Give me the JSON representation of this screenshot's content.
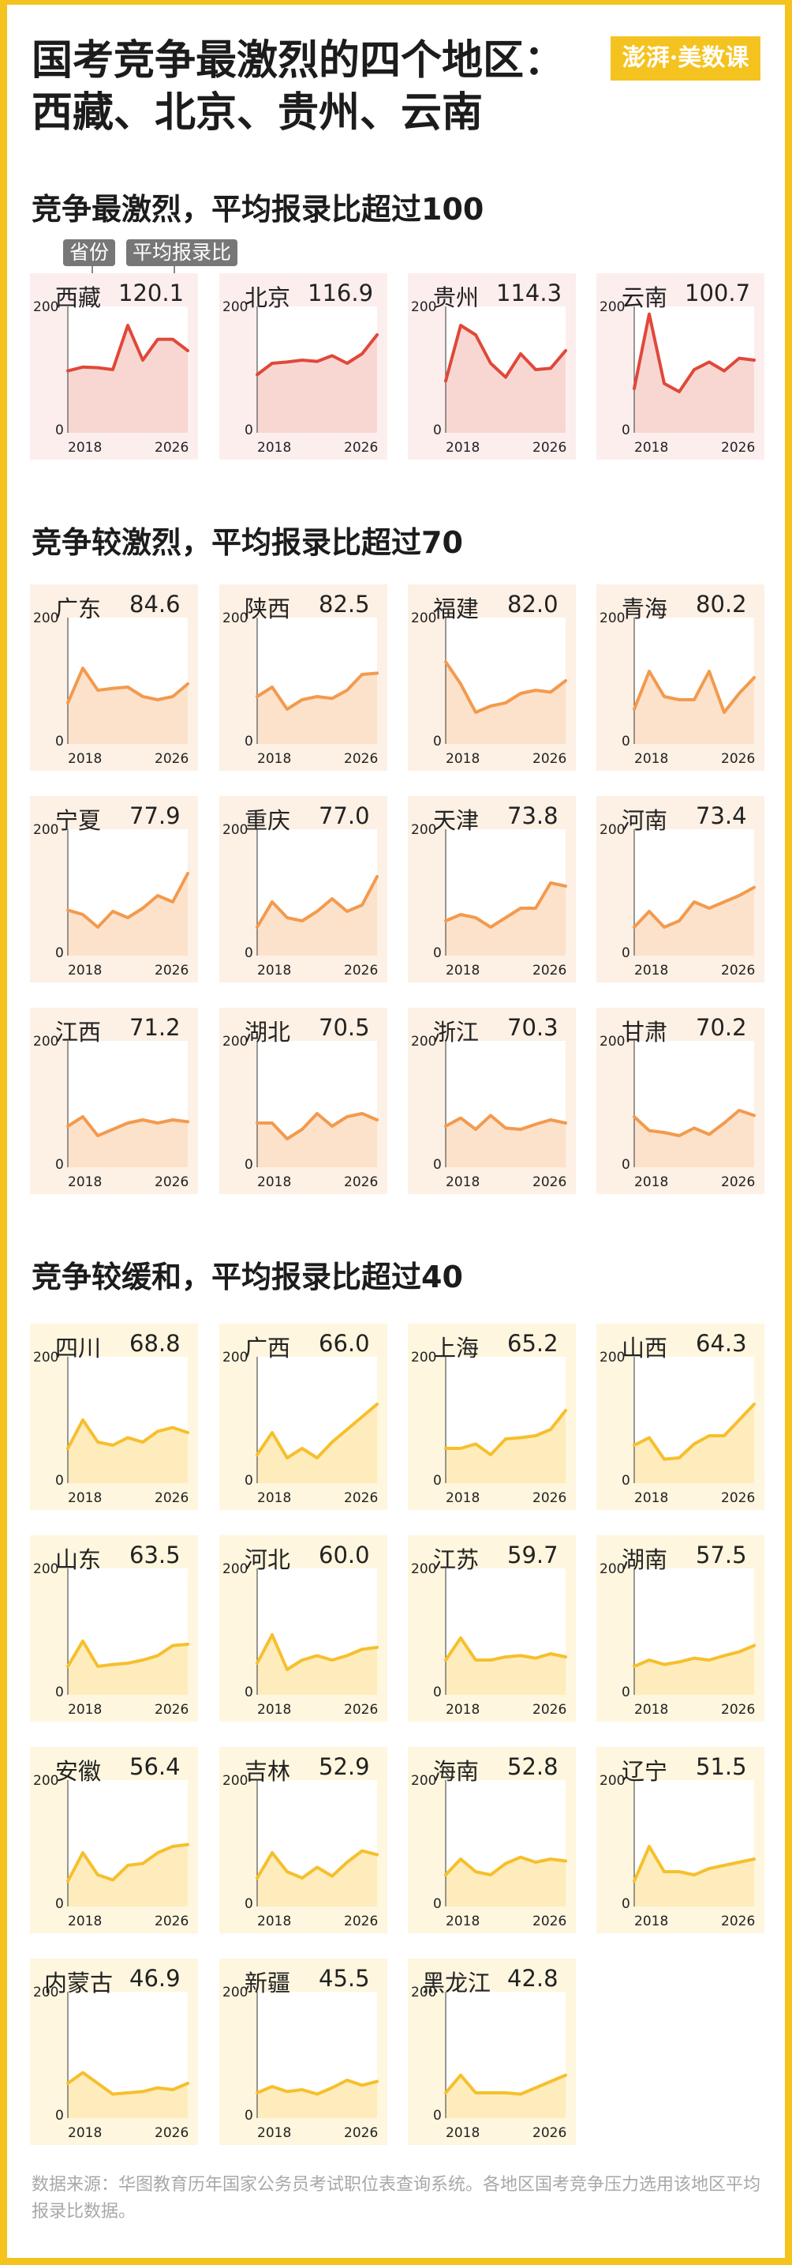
{
  "title": "国考竞争最激烈的四个地区：西藏、北京、贵州、云南",
  "logo": "澎湃·美数课",
  "legend": {
    "province": "省份",
    "ratio": "平均报录比"
  },
  "source": "数据来源：华图教育历年国家公务员考试职位表查询系统。各地区国考竞争压力选用该地区平均报录比数据。",
  "axis": {
    "y_max_label": "200",
    "y_min_label": "0",
    "x_start_label": "2018",
    "x_end_label": "2026"
  },
  "groups": [
    {
      "title": "竞争最激烈，平均报录比超过100",
      "line_color": "#e0483a",
      "fill_color": "#f6c9c3",
      "card_color": "#fdeeee"
    },
    {
      "title": "竞争较激烈，平均报录比超过70",
      "line_color": "#f39a4e",
      "fill_color": "#fbd8b9",
      "card_color": "#fdf0e4"
    },
    {
      "title": "竞争较缓和，平均报录比超过40",
      "line_color": "#f6bf2c",
      "fill_color": "#fde5a6",
      "card_color": "#fef6de"
    }
  ],
  "chart_data": {
    "type": "area",
    "x": [
      2018,
      2019,
      2020,
      2021,
      2022,
      2023,
      2024,
      2025,
      2026
    ],
    "ylim": [
      0,
      200
    ],
    "series": [
      {
        "name": "西藏",
        "label": "120.1",
        "group": 0,
        "values": [
          98,
          104,
          103,
          100,
          170,
          115,
          148,
          148,
          130
        ]
      },
      {
        "name": "北京",
        "label": "116.9",
        "group": 0,
        "values": [
          92,
          110,
          112,
          115,
          113,
          122,
          110,
          125,
          155
        ]
      },
      {
        "name": "贵州",
        "label": "114.3",
        "group": 0,
        "values": [
          82,
          170,
          155,
          110,
          88,
          125,
          100,
          102,
          130
        ]
      },
      {
        "name": "云南",
        "label": "100.7",
        "group": 0,
        "values": [
          70,
          188,
          78,
          65,
          100,
          112,
          98,
          118,
          115
        ]
      },
      {
        "name": "广东",
        "label": "84.6",
        "group": 1,
        "values": [
          65,
          120,
          85,
          88,
          90,
          75,
          70,
          75,
          95
        ]
      },
      {
        "name": "陕西",
        "label": "82.5",
        "group": 1,
        "values": [
          75,
          90,
          55,
          70,
          75,
          72,
          85,
          110,
          112
        ]
      },
      {
        "name": "福建",
        "label": "82.0",
        "group": 1,
        "values": [
          130,
          95,
          50,
          60,
          65,
          80,
          85,
          82,
          100
        ]
      },
      {
        "name": "青海",
        "label": "80.2",
        "group": 1,
        "values": [
          55,
          115,
          75,
          70,
          70,
          115,
          50,
          80,
          105
        ]
      },
      {
        "name": "宁夏",
        "label": "77.9",
        "group": 2,
        "values": [
          72,
          65,
          45,
          70,
          60,
          75,
          95,
          85,
          130
        ]
      },
      {
        "name": "重庆",
        "label": "77.0",
        "group": 2,
        "values": [
          45,
          85,
          60,
          55,
          70,
          90,
          70,
          80,
          125
        ]
      },
      {
        "name": "天津",
        "label": "73.8",
        "group": 2,
        "values": [
          55,
          65,
          60,
          45,
          60,
          75,
          75,
          115,
          110
        ]
      },
      {
        "name": "河南",
        "label": "73.4",
        "group": 2,
        "values": [
          45,
          70,
          45,
          55,
          85,
          75,
          85,
          95,
          108
        ]
      },
      {
        "name": "江西",
        "label": "71.2",
        "group": 3,
        "values": [
          65,
          80,
          50,
          60,
          70,
          75,
          70,
          75,
          72
        ]
      },
      {
        "name": "湖北",
        "label": "70.5",
        "group": 3,
        "values": [
          70,
          70,
          45,
          60,
          85,
          65,
          80,
          85,
          75
        ]
      },
      {
        "name": "浙江",
        "label": "70.3",
        "group": 3,
        "values": [
          65,
          78,
          60,
          82,
          62,
          60,
          68,
          75,
          70
        ]
      },
      {
        "name": "甘肃",
        "label": "70.2",
        "group": 3,
        "values": [
          80,
          58,
          55,
          50,
          62,
          52,
          70,
          90,
          82
        ]
      },
      {
        "name": "四川",
        "label": "68.8",
        "group": 4,
        "values": [
          55,
          100,
          65,
          60,
          72,
          65,
          82,
          88,
          80
        ]
      },
      {
        "name": "广西",
        "label": "66.0",
        "group": 4,
        "values": [
          45,
          80,
          40,
          55,
          40,
          65,
          85,
          105,
          125
        ]
      },
      {
        "name": "上海",
        "label": "65.2",
        "group": 4,
        "values": [
          55,
          55,
          62,
          45,
          70,
          72,
          75,
          85,
          115
        ]
      },
      {
        "name": "山西",
        "label": "64.3",
        "group": 4,
        "values": [
          60,
          72,
          38,
          40,
          62,
          75,
          75,
          100,
          125
        ]
      },
      {
        "name": "山东",
        "label": "63.5",
        "group": 5,
        "values": [
          45,
          85,
          45,
          48,
          50,
          55,
          62,
          78,
          80
        ]
      },
      {
        "name": "河北",
        "label": "60.0",
        "group": 5,
        "values": [
          50,
          95,
          40,
          55,
          62,
          55,
          62,
          72,
          75
        ]
      },
      {
        "name": "江苏",
        "label": "59.7",
        "group": 5,
        "values": [
          55,
          90,
          55,
          55,
          60,
          62,
          58,
          65,
          60
        ]
      },
      {
        "name": "湖南",
        "label": "57.5",
        "group": 5,
        "values": [
          45,
          55,
          48,
          52,
          58,
          55,
          62,
          68,
          78
        ]
      },
      {
        "name": "安徽",
        "label": "56.4",
        "group": 6,
        "values": [
          40,
          85,
          50,
          42,
          65,
          68,
          85,
          95,
          98
        ]
      },
      {
        "name": "吉林",
        "label": "52.9",
        "group": 6,
        "values": [
          45,
          85,
          55,
          45,
          62,
          48,
          70,
          88,
          82
        ]
      },
      {
        "name": "海南",
        "label": "52.8",
        "group": 6,
        "values": [
          50,
          75,
          55,
          50,
          68,
          78,
          70,
          75,
          72
        ]
      },
      {
        "name": "辽宁",
        "label": "51.5",
        "group": 6,
        "values": [
          40,
          95,
          55,
          55,
          50,
          60,
          65,
          70,
          75
        ]
      },
      {
        "name": "内蒙古",
        "label": "46.9",
        "group": 7,
        "values": [
          55,
          72,
          55,
          38,
          40,
          42,
          48,
          45,
          55
        ]
      },
      {
        "name": "新疆",
        "label": "45.5",
        "group": 7,
        "values": [
          40,
          50,
          42,
          45,
          38,
          48,
          60,
          52,
          58
        ]
      },
      {
        "name": "黑龙江",
        "label": "42.8",
        "group": 7,
        "values": [
          40,
          68,
          40,
          40,
          40,
          38,
          48,
          58,
          68
        ]
      }
    ]
  }
}
